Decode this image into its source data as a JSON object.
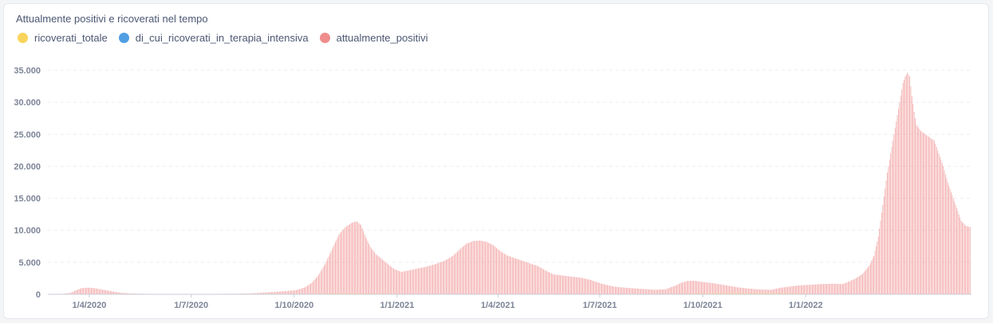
{
  "chart_data": {
    "type": "bar",
    "title": "Attualmente positivi e ricoverati nel tempo",
    "legend_position": "top-left",
    "grid": true,
    "series": [
      {
        "name": "ricoverati_totale",
        "color": "#f9d45c",
        "points": [
          [
            0,
            0
          ],
          [
            20,
            50
          ],
          [
            40,
            30
          ],
          [
            60,
            10
          ],
          [
            110,
            5
          ],
          [
            180,
            10
          ],
          [
            230,
            60
          ],
          [
            260,
            120
          ],
          [
            300,
            90
          ],
          [
            330,
            60
          ],
          [
            380,
            20
          ],
          [
            450,
            20
          ],
          [
            490,
            30
          ],
          [
            560,
            70
          ],
          [
            600,
            150
          ],
          [
            650,
            150
          ],
          [
            690,
            50
          ],
          [
            723,
            50
          ]
        ]
      },
      {
        "name": "di_cui_ricoverati_in_terapia_intensiva",
        "color": "#509ee3",
        "points": [
          [
            0,
            0
          ],
          [
            20,
            20
          ],
          [
            60,
            5
          ],
          [
            230,
            20
          ],
          [
            260,
            40
          ],
          [
            330,
            20
          ],
          [
            450,
            5
          ],
          [
            560,
            20
          ],
          [
            600,
            40
          ],
          [
            723,
            20
          ]
        ]
      },
      {
        "name": "attualmente_positivi",
        "color": "#ef8c8c",
        "points": [
          [
            0,
            0
          ],
          [
            10,
            20
          ],
          [
            20,
            200
          ],
          [
            25,
            600
          ],
          [
            30,
            950
          ],
          [
            36,
            1050
          ],
          [
            42,
            950
          ],
          [
            50,
            700
          ],
          [
            56,
            500
          ],
          [
            65,
            250
          ],
          [
            75,
            120
          ],
          [
            95,
            60
          ],
          [
            140,
            40
          ],
          [
            180,
            120
          ],
          [
            205,
            400
          ],
          [
            213,
            500
          ],
          [
            222,
            650
          ],
          [
            230,
            1100
          ],
          [
            236,
            1800
          ],
          [
            242,
            3000
          ],
          [
            248,
            4800
          ],
          [
            254,
            7000
          ],
          [
            260,
            9300
          ],
          [
            266,
            10500
          ],
          [
            272,
            11200
          ],
          [
            276,
            11400
          ],
          [
            280,
            10800
          ],
          [
            284,
            9000
          ],
          [
            288,
            7500
          ],
          [
            293,
            6300
          ],
          [
            298,
            5600
          ],
          [
            304,
            4700
          ],
          [
            310,
            3900
          ],
          [
            316,
            3500
          ],
          [
            322,
            3700
          ],
          [
            330,
            4000
          ],
          [
            338,
            4300
          ],
          [
            346,
            4700
          ],
          [
            354,
            5200
          ],
          [
            362,
            6000
          ],
          [
            368,
            7000
          ],
          [
            374,
            7900
          ],
          [
            380,
            8300
          ],
          [
            386,
            8400
          ],
          [
            392,
            8200
          ],
          [
            398,
            7700
          ],
          [
            404,
            6800
          ],
          [
            410,
            6100
          ],
          [
            418,
            5600
          ],
          [
            428,
            5000
          ],
          [
            438,
            4400
          ],
          [
            446,
            3600
          ],
          [
            452,
            3100
          ],
          [
            466,
            2800
          ],
          [
            476,
            2600
          ],
          [
            484,
            2300
          ],
          [
            494,
            1700
          ],
          [
            506,
            1200
          ],
          [
            518,
            1000
          ],
          [
            530,
            850
          ],
          [
            542,
            700
          ],
          [
            552,
            800
          ],
          [
            560,
            1300
          ],
          [
            566,
            1800
          ],
          [
            572,
            2100
          ],
          [
            578,
            2100
          ],
          [
            586,
            1900
          ],
          [
            596,
            1700
          ],
          [
            606,
            1400
          ],
          [
            616,
            1100
          ],
          [
            626,
            900
          ],
          [
            636,
            750
          ],
          [
            646,
            700
          ],
          [
            654,
            1000
          ],
          [
            662,
            1200
          ],
          [
            672,
            1400
          ],
          [
            682,
            1500
          ],
          [
            692,
            1600
          ],
          [
            702,
            1650
          ],
          [
            710,
            1600
          ],
          [
            716,
            2000
          ],
          [
            722,
            2500
          ],
          [
            728,
            3200
          ],
          [
            734,
            4500
          ],
          [
            738,
            6000
          ],
          [
            742,
            9000
          ],
          [
            746,
            14000
          ],
          [
            750,
            19000
          ],
          [
            754,
            23000
          ],
          [
            758,
            27000
          ],
          [
            762,
            31000
          ],
          [
            764,
            33000
          ],
          [
            766,
            34000
          ],
          [
            768,
            34600
          ],
          [
            770,
            34000
          ],
          [
            772,
            31000
          ],
          [
            774,
            28500
          ],
          [
            776,
            26500
          ],
          [
            780,
            25500
          ],
          [
            784,
            25000
          ],
          [
            788,
            24500
          ],
          [
            792,
            24000
          ],
          [
            796,
            22000
          ],
          [
            800,
            20000
          ],
          [
            804,
            17500
          ],
          [
            808,
            15500
          ],
          [
            812,
            13500
          ],
          [
            816,
            11500
          ],
          [
            820,
            10700
          ],
          [
            824,
            10500
          ]
        ]
      }
    ],
    "x_range": [
      0,
      825
    ],
    "x_ticks": [
      {
        "label": "1/4/2020",
        "x": 37
      },
      {
        "label": "1/7/2020",
        "x": 128
      },
      {
        "label": "1/10/2020",
        "x": 220
      },
      {
        "label": "1/1/2021",
        "x": 312
      },
      {
        "label": "1/4/2021",
        "x": 402
      },
      {
        "label": "1/7/2021",
        "x": 493
      },
      {
        "label": "1/10/2021",
        "x": 585
      },
      {
        "label": "1/1/2022",
        "x": 677
      }
    ],
    "ylim": [
      0,
      37000
    ],
    "y_ticks": [
      {
        "label": "0",
        "v": 0
      },
      {
        "label": "5.000",
        "v": 5000
      },
      {
        "label": "10.000",
        "v": 10000
      },
      {
        "label": "15.000",
        "v": 15000
      },
      {
        "label": "20.000",
        "v": 20000
      },
      {
        "label": "25.000",
        "v": 25000
      },
      {
        "label": "30.000",
        "v": 30000
      },
      {
        "label": "35.000",
        "v": 35000
      }
    ],
    "x_step_days": 1,
    "colors": {
      "grid": "#eceef2",
      "axis": "#c9ced8"
    }
  }
}
